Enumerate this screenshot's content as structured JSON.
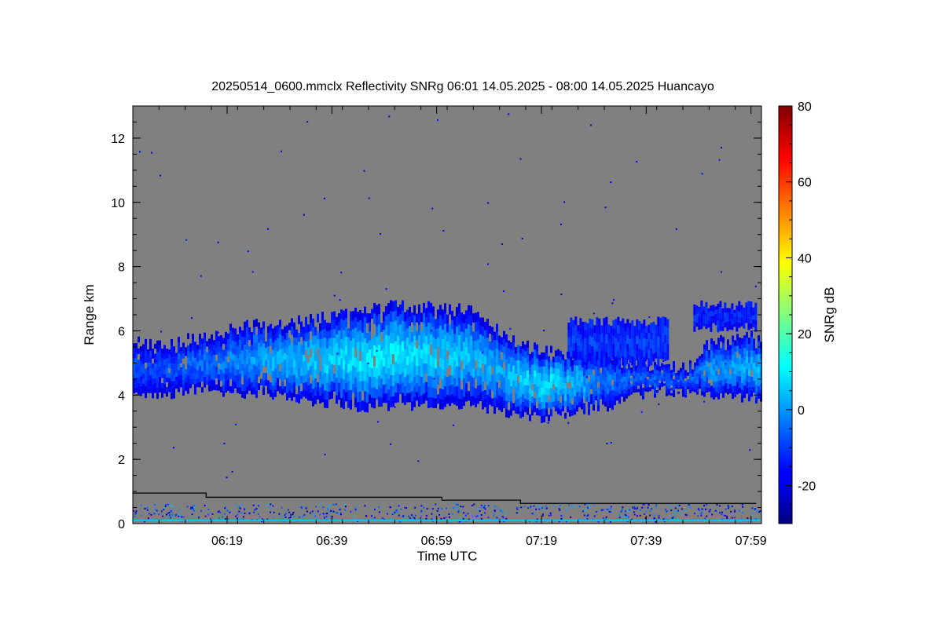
{
  "chart_data": {
    "type": "heatmap",
    "title": "20250514_0600.mmclx Reflectivity SNRg   06:01 14.05.2025 - 08:00 14.05.2025 Huancayo",
    "xlabel": "Time UTC",
    "ylabel": "Range km",
    "x_ticks": [
      "06:19",
      "06:39",
      "06:59",
      "07:19",
      "07:39",
      "07:59"
    ],
    "x_range": [
      "06:01",
      "08:00"
    ],
    "y_ticks": [
      "0",
      "2",
      "4",
      "6",
      "8",
      "10",
      "12"
    ],
    "ylim": [
      0,
      13
    ],
    "background_color": "#808080",
    "colorbar": {
      "label": "SNRg dB",
      "ticks": [
        "-20",
        "0",
        "20",
        "40",
        "60",
        "80"
      ],
      "range": [
        -30,
        80
      ],
      "colormap": "jet"
    },
    "cloud_layer": {
      "time_minutes_after_0601": [
        0,
        5,
        10,
        15,
        20,
        25,
        30,
        35,
        40,
        45,
        50,
        55,
        60,
        65,
        70,
        75,
        80,
        85,
        90,
        95,
        100,
        105,
        110,
        115,
        119
      ],
      "base_km": [
        4.0,
        4.0,
        4.1,
        4.1,
        4.0,
        4.0,
        3.9,
        3.8,
        3.7,
        3.6,
        3.6,
        3.7,
        3.7,
        3.7,
        3.5,
        3.3,
        3.3,
        3.5,
        3.6,
        3.9,
        4.1,
        4.1,
        4.0,
        4.0,
        3.8
      ],
      "top_km": [
        5.7,
        5.5,
        5.7,
        5.9,
        6.1,
        6.2,
        6.3,
        6.4,
        6.5,
        6.7,
        6.8,
        6.7,
        6.7,
        6.6,
        6.0,
        5.5,
        5.3,
        5.3,
        5.2,
        5.0,
        4.9,
        4.8,
        5.6,
        5.8,
        5.8
      ],
      "peak_snr_db": [
        -8,
        -10,
        -6,
        -4,
        -2,
        2,
        3,
        5,
        8,
        9,
        9,
        7,
        6,
        4,
        2,
        7,
        9,
        3,
        -4,
        -6,
        -6,
        -8,
        0,
        2,
        3
      ]
    },
    "upper_patches": [
      {
        "start_minute": 83,
        "end_minute": 102,
        "base_km": 5.0,
        "top_km": 6.3,
        "peak_snr_db": -10
      },
      {
        "start_minute": 107,
        "end_minute": 119,
        "base_km": 6.1,
        "top_km": 6.8,
        "peak_snr_db": -12
      }
    ],
    "clutter_boundary": {
      "time_minutes_after_0601": [
        0,
        14,
        14,
        59,
        59,
        74,
        74,
        119
      ],
      "range_km": [
        0.95,
        0.95,
        0.82,
        0.82,
        0.73,
        0.73,
        0.63,
        0.63
      ]
    }
  }
}
